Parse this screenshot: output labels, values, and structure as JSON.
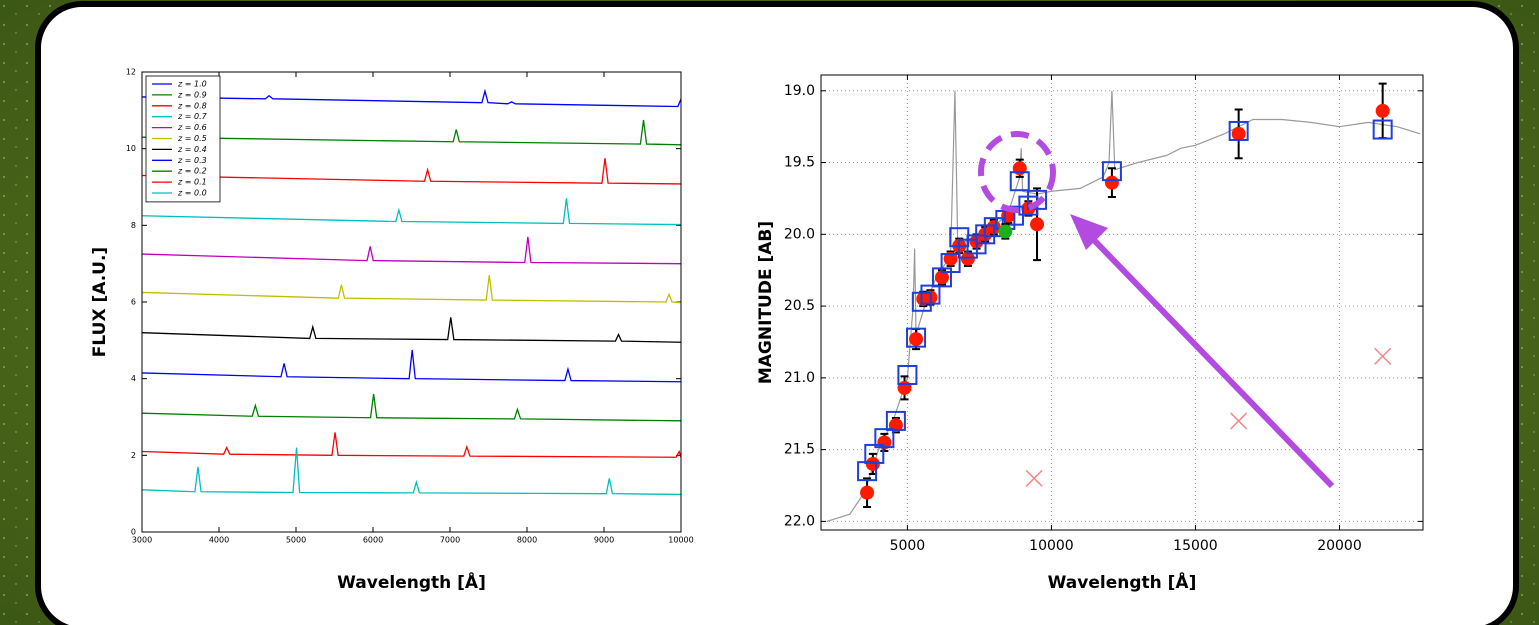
{
  "chart_data": [
    {
      "type": "line",
      "xlabel": "Wavelength [Å]",
      "ylabel": "FLUX [A.U.]",
      "xlim": [
        3000,
        10000
      ],
      "ylim": [
        0,
        12
      ],
      "xticks": [
        3000,
        4000,
        5000,
        6000,
        7000,
        8000,
        9000,
        10000
      ],
      "yticks": [
        0,
        2,
        4,
        6,
        8,
        10,
        12
      ],
      "grid": false,
      "legend": "upper left",
      "series": [
        {
          "name": "z = 1.0",
          "color": "#0000ff",
          "x": [
            3000,
            4600,
            4650,
            4700,
            7414,
            7454,
            7494,
            7750,
            7800,
            7850,
            9960,
            10000
          ],
          "values": [
            11.35,
            11.3,
            11.38,
            11.3,
            11.2,
            11.5,
            11.2,
            11.17,
            11.22,
            11.17,
            11.1,
            11.3
          ]
        },
        {
          "name": "z = 0.9",
          "color": "#008000",
          "x": [
            3000,
            7041,
            7081,
            7121,
            9473,
            9513,
            9553,
            10000
          ],
          "values": [
            10.3,
            10.18,
            10.5,
            10.18,
            10.12,
            10.75,
            10.12,
            10.1
          ]
        },
        {
          "name": "z = 0.8",
          "color": "#ff0000",
          "x": [
            3000,
            6669,
            6709,
            6749,
            8973,
            9013,
            9053,
            10000
          ],
          "values": [
            9.3,
            9.15,
            9.45,
            9.15,
            9.1,
            9.75,
            9.1,
            9.08
          ]
        },
        {
          "name": "z = 0.7",
          "color": "#00bfbf",
          "x": [
            3000,
            6296,
            6336,
            6376,
            8472,
            8512,
            8552,
            10000
          ],
          "values": [
            8.25,
            8.1,
            8.4,
            8.1,
            8.05,
            8.7,
            8.05,
            8.02
          ]
        },
        {
          "name": "z = 0.6",
          "color": "#bf00bf",
          "x": [
            3000,
            5923,
            5963,
            6003,
            7971,
            8011,
            8051,
            10000
          ],
          "values": [
            7.25,
            7.08,
            7.45,
            7.08,
            7.03,
            7.7,
            7.03,
            7.0
          ]
        },
        {
          "name": "z = 0.5",
          "color": "#bfbf00",
          "x": [
            3000,
            5550,
            5590,
            5630,
            7470,
            7510,
            7550,
            9804,
            9844,
            9884,
            10000
          ],
          "values": [
            6.25,
            6.1,
            6.45,
            6.1,
            6.05,
            6.7,
            6.05,
            6.0,
            6.2,
            6.0,
            5.98
          ]
        },
        {
          "name": "z = 0.4",
          "color": "#000000",
          "x": [
            3000,
            5178,
            5218,
            5258,
            6970,
            7010,
            7050,
            9148,
            9188,
            9228,
            10000
          ],
          "values": [
            5.2,
            5.05,
            5.35,
            5.05,
            5.02,
            5.6,
            5.02,
            4.98,
            5.15,
            4.98,
            4.95
          ]
        },
        {
          "name": "z = 0.3",
          "color": "#0000ff",
          "x": [
            3000,
            4805,
            4845,
            4885,
            6469,
            6509,
            6549,
            8492,
            8532,
            8572,
            10000
          ],
          "values": [
            4.15,
            4.05,
            4.4,
            4.05,
            4.0,
            4.75,
            4.0,
            3.95,
            4.25,
            3.95,
            3.92
          ]
        },
        {
          "name": "z = 0.2",
          "color": "#008000",
          "x": [
            3000,
            4432,
            4472,
            4512,
            5968,
            6008,
            6048,
            7836,
            7876,
            7916,
            10000
          ],
          "values": [
            3.1,
            3.02,
            3.3,
            3.02,
            2.98,
            3.6,
            2.98,
            2.95,
            3.2,
            2.95,
            2.9
          ]
        },
        {
          "name": "z = 0.1",
          "color": "#ff0000",
          "x": [
            3000,
            4060,
            4100,
            4140,
            5467,
            5507,
            5547,
            7179,
            7219,
            7259,
            9936,
            9976,
            10000
          ],
          "values": [
            2.1,
            2.03,
            2.2,
            2.03,
            2.0,
            2.6,
            2.0,
            1.98,
            2.22,
            1.98,
            1.95,
            2.1,
            1.95
          ]
        },
        {
          "name": "z = 0.0",
          "color": "#00bfbf",
          "x": [
            3000,
            3687,
            3727,
            3767,
            4961,
            5007,
            5047,
            6523,
            6563,
            6603,
            9029,
            9069,
            9109,
            10000
          ],
          "values": [
            1.1,
            1.05,
            1.7,
            1.05,
            1.03,
            2.2,
            1.03,
            1.02,
            1.3,
            1.02,
            1.0,
            1.4,
            1.0,
            0.98
          ]
        }
      ]
    },
    {
      "type": "scatter",
      "xlabel": "Wavelength [Å]",
      "ylabel": "MAGNITUDE [AB]",
      "xlim": [
        2000,
        22900
      ],
      "ylim": [
        22.06,
        18.89
      ],
      "xticks": [
        5000,
        10000,
        15000,
        20000
      ],
      "yticks": [
        {
          "value": 19,
          "label": "19.0"
        },
        19.5,
        {
          "value": 20,
          "label": "20.0"
        },
        20.5,
        {
          "value": 21,
          "label": "21.0"
        },
        21.5,
        {
          "value": 22,
          "label": "22.0"
        }
      ],
      "grid": true,
      "series": [
        {
          "marker": "none",
          "color": "#999999",
          "x": [
            2200,
            3000,
            3500,
            4000,
            4500,
            5000,
            5200,
            5250,
            5300,
            5600,
            6000,
            6500,
            6650,
            6750,
            7000,
            7500,
            8000,
            8500,
            8900,
            8950,
            9000,
            9500,
            10000,
            11000,
            11800,
            12000,
            12100,
            12200,
            13000,
            14000,
            14500,
            15000,
            16000,
            17000,
            18000,
            19000,
            20000,
            21000,
            22000,
            22800
          ],
          "values": [
            22.0,
            21.95,
            21.8,
            21.5,
            21.3,
            21.0,
            20.5,
            20.1,
            20.7,
            20.5,
            20.3,
            20.15,
            19.0,
            20.1,
            20.05,
            20.0,
            19.95,
            19.85,
            19.6,
            19.4,
            19.7,
            19.72,
            19.7,
            19.68,
            19.6,
            19.5,
            19.0,
            19.55,
            19.5,
            19.45,
            19.4,
            19.38,
            19.3,
            19.2,
            19.2,
            19.22,
            19.25,
            19.22,
            19.25,
            19.3
          ]
        },
        {
          "marker": "o",
          "color": "#ff1a00",
          "x": [
            3600,
            3800,
            4200,
            4600,
            4900,
            5300,
            5550,
            5800,
            6200,
            6500,
            6800,
            7100,
            7400,
            7700,
            8000,
            8500,
            8900,
            9200,
            9500,
            12100,
            16500,
            21500
          ],
          "values": [
            21.8,
            21.6,
            21.45,
            21.33,
            21.07,
            20.73,
            20.45,
            20.44,
            20.3,
            20.17,
            20.08,
            20.17,
            20.05,
            20.0,
            19.95,
            19.87,
            19.54,
            19.82,
            19.93,
            19.64,
            19.3,
            19.14
          ],
          "errors": [
            0.1,
            0.07,
            0.06,
            0.05,
            0.08,
            0.07,
            0.05,
            0.05,
            0.05,
            0.05,
            0.05,
            0.05,
            0.05,
            0.05,
            0.05,
            0.05,
            0.06,
            0.05,
            0.25,
            0.1,
            0.17,
            0.19
          ]
        },
        {
          "marker": "s",
          "color": "#1f3fd8",
          "x": [
            3600,
            3850,
            4200,
            4600,
            5000,
            5300,
            5500,
            5800,
            6200,
            6500,
            6800,
            7100,
            7400,
            7700,
            8000,
            8400,
            8700,
            8900,
            9200,
            9500,
            12100,
            16500,
            21500
          ],
          "values": [
            21.65,
            21.53,
            21.42,
            21.3,
            20.98,
            20.72,
            20.47,
            20.42,
            20.3,
            20.2,
            20.02,
            20.1,
            20.07,
            20.0,
            19.95,
            19.9,
            19.87,
            19.63,
            19.8,
            19.76,
            19.56,
            19.28,
            19.27
          ]
        },
        {
          "marker": "o",
          "color": "#1db01d",
          "x": [
            8400
          ],
          "values": [
            19.98
          ],
          "errors": [
            0.05
          ]
        },
        {
          "marker": "x",
          "color": "#f58a8a",
          "x": [
            9400,
            16500,
            21500
          ],
          "values": [
            21.7,
            21.3,
            20.85
          ]
        }
      ]
    }
  ]
}
